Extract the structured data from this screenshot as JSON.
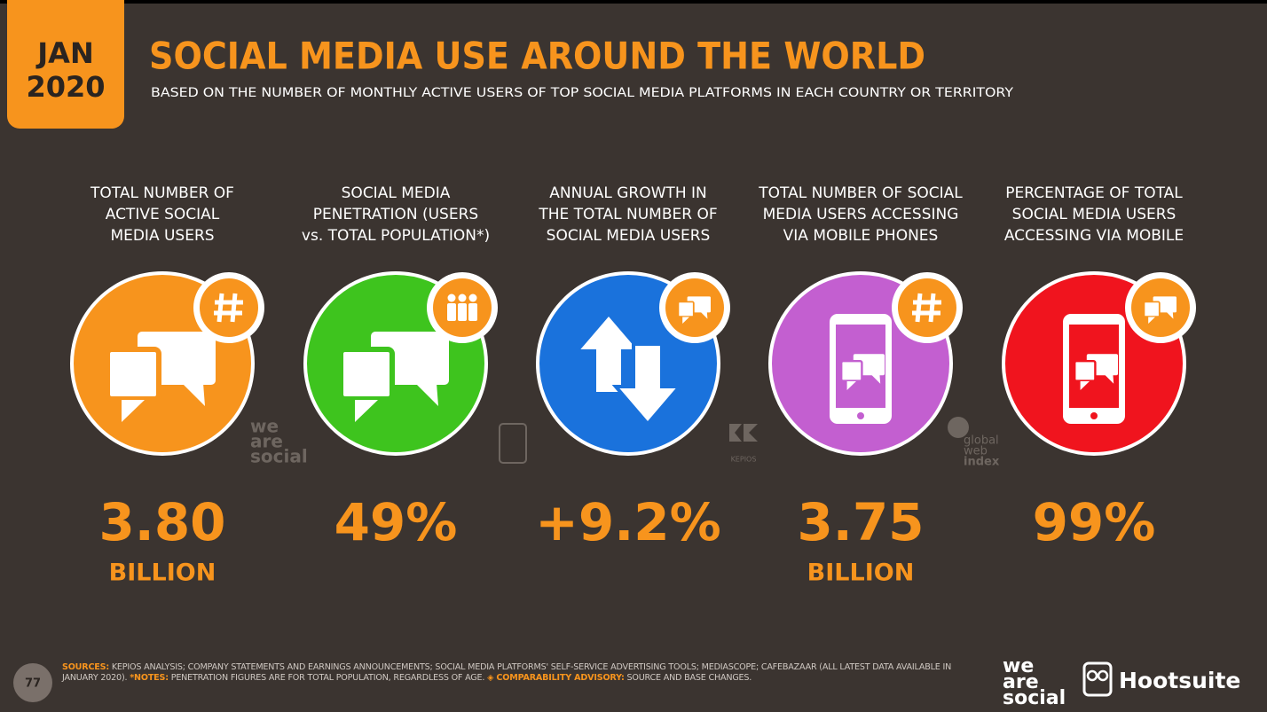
{
  "header": {
    "badge_month": "JAN",
    "badge_year": "2020",
    "title": "SOCIAL MEDIA USE AROUND THE WORLD",
    "subtitle": "BASED ON THE NUMBER OF MONTHLY ACTIVE USERS OF TOP SOCIAL MEDIA PLATFORMS IN EACH COUNTRY OR TERRITORY"
  },
  "stats": [
    {
      "label_lines": [
        "TOTAL NUMBER OF",
        "ACTIVE SOCIAL",
        "MEDIA USERS"
      ],
      "value": "3.80",
      "unit": "BILLION"
    },
    {
      "label_lines": [
        "SOCIAL MEDIA",
        "PENETRATION (USERS",
        "vs. TOTAL POPULATION*)"
      ],
      "value": "49%"
    },
    {
      "label_lines": [
        "ANNUAL GROWTH IN",
        "THE TOTAL NUMBER OF",
        "SOCIAL MEDIA USERS"
      ],
      "value": "+9.2%"
    },
    {
      "label_lines": [
        "TOTAL NUMBER OF SOCIAL",
        "MEDIA USERS ACCESSING",
        "VIA MOBILE PHONES"
      ],
      "value": "3.75",
      "unit": "BILLION"
    },
    {
      "label_lines": [
        "PERCENTAGE OF TOTAL",
        "SOCIAL MEDIA USERS",
        "ACCESSING VIA MOBILE"
      ],
      "value": "99%"
    }
  ],
  "watermarks": {
    "we_are_social": [
      "we",
      "are",
      "social"
    ],
    "kepios": "KEPIOS",
    "gwi": [
      "global",
      "web",
      "index"
    ]
  },
  "footer": {
    "page": "77",
    "sources_label": "SOURCES:",
    "sources_text": "KEPIOS ANALYSIS; COMPANY STATEMENTS AND EARNINGS ANNOUNCEMENTS; SOCIAL MEDIA PLATFORMS' SELF-SERVICE ADVERTISING TOOLS; MEDIASCOPE; CAFEBAZAAR (ALL LATEST DATA AVAILABLE IN JANUARY 2020).",
    "notes_label": "*NOTES:",
    "notes_text": "PENETRATION FIGURES ARE FOR TOTAL POPULATION, REGARDLESS OF AGE.",
    "advisory_label": "◈ COMPARABILITY ADVISORY:",
    "advisory_text": "SOURCE AND BASE CHANGES.",
    "logo_was": [
      "we",
      "are",
      "social"
    ],
    "logo_hootsuite": "Hootsuite"
  }
}
